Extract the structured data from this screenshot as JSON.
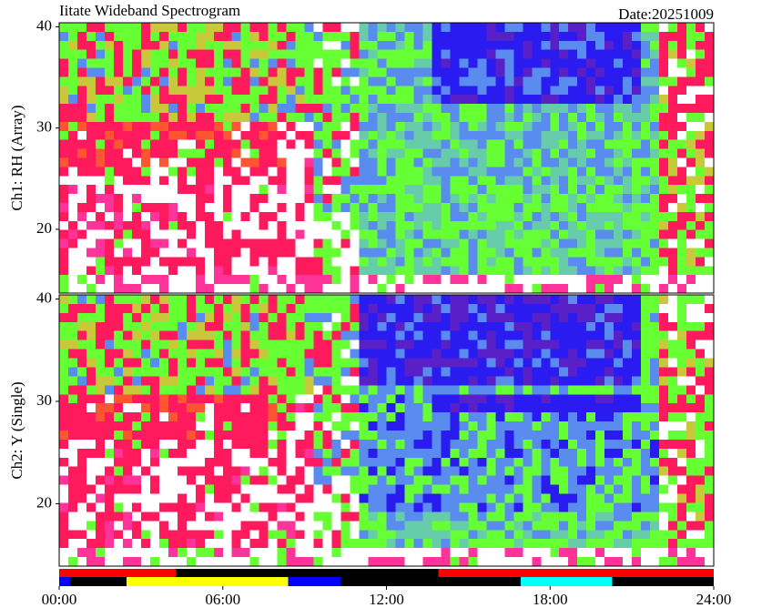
{
  "chart_data": [
    {
      "type": "spectrogram",
      "title": "Iitate Wideband Spectrogram",
      "subtitle": "Date:20251009",
      "y_label": "Ch1: RH (Array)",
      "xlim": [
        0,
        24
      ],
      "ylim": [
        13.7,
        40.4
      ],
      "yticks": [
        20,
        30,
        40
      ]
    },
    {
      "type": "spectrogram",
      "y_label": "Ch2: Y (Single)",
      "xlim": [
        0,
        24
      ],
      "ylim": [
        13.9,
        40.4
      ],
      "yticks": [
        20,
        30,
        40
      ],
      "xticks": [
        {
          "value": 0,
          "label": "00:00"
        },
        {
          "value": 6,
          "label": "06:00"
        },
        {
          "value": 12,
          "label": "12:00"
        },
        {
          "value": 18,
          "label": "18:00"
        },
        {
          "value": 24,
          "label": "24:00"
        }
      ]
    },
    {
      "type": "status",
      "xlim": [
        0,
        24
      ],
      "rows": [
        {
          "segments": [
            {
              "start": 0,
              "end": 4.27,
              "color": "#ff0000"
            },
            {
              "start": 4.27,
              "end": 13.9,
              "color": "#000000"
            },
            {
              "start": 13.9,
              "end": 24,
              "color": "#ff0000"
            }
          ]
        },
        {
          "segments": [
            {
              "start": 0,
              "end": 0.4,
              "color": "#0000ff"
            },
            {
              "start": 0.4,
              "end": 2.47,
              "color": "#000000"
            },
            {
              "start": 2.47,
              "end": 8.4,
              "color": "#ffff00"
            },
            {
              "start": 8.4,
              "end": 10.33,
              "color": "#0000ff"
            },
            {
              "start": 10.33,
              "end": 16.93,
              "color": "#000000"
            },
            {
              "start": 16.93,
              "end": 20.27,
              "color": "#00ffff"
            },
            {
              "start": 20.27,
              "end": 24,
              "color": "#000000"
            }
          ]
        }
      ]
    }
  ]
}
